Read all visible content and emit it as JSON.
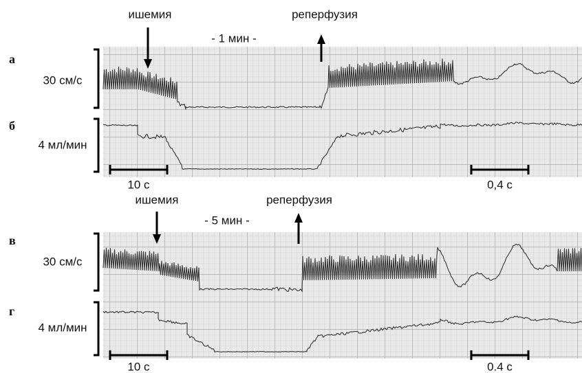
{
  "panels": [
    {
      "ischemia": "ишемия",
      "reperfusion": "реперфузия",
      "duration": "- 1 мин -",
      "traces": [
        {
          "letter": "а",
          "scale": "30 см/с"
        },
        {
          "letter": "б",
          "scale": "4 мл/мин"
        }
      ],
      "time_bars": [
        "10 с",
        "0,4 с"
      ]
    },
    {
      "ischemia": "ишемия",
      "reperfusion": "реперфузия",
      "duration": "- 5 мин -",
      "traces": [
        {
          "letter": "в",
          "scale": "30 см/с"
        },
        {
          "letter": "г",
          "scale": "4 мл/мин"
        }
      ],
      "time_bars": [
        "10 с",
        "0.4 с"
      ]
    }
  ]
}
